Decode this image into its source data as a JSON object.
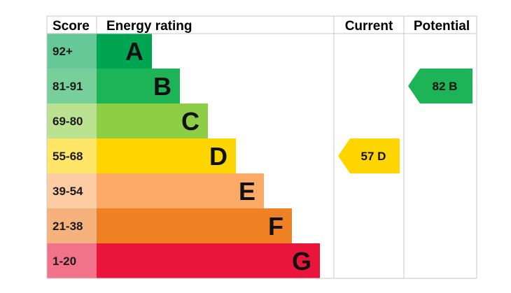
{
  "headers": {
    "score": "Score",
    "rating": "Energy rating",
    "current": "Current",
    "potential": "Potential"
  },
  "chart_data": {
    "type": "bar",
    "categories": [
      "A",
      "B",
      "C",
      "D",
      "E",
      "F",
      "G"
    ],
    "score_ranges": [
      "92+",
      "81-91",
      "69-80",
      "55-68",
      "39-54",
      "21-38",
      "1-20"
    ],
    "band_colors": [
      "#00a551",
      "#1db357",
      "#8dce46",
      "#ffd500",
      "#fcaa65",
      "#ef8023",
      "#e9153b"
    ],
    "score_colors": [
      "#66c897",
      "#77d09a",
      "#bbe290",
      "#ffe666",
      "#fdcca3",
      "#f5b27c",
      "#f27389"
    ],
    "current": {
      "value": 57,
      "band": "D",
      "label": "57  D",
      "color": "#ffd500"
    },
    "potential": {
      "value": 82,
      "band": "B",
      "label": "82  B",
      "color": "#1db357"
    }
  }
}
